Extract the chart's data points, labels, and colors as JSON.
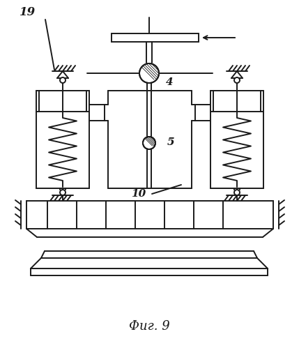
{
  "title": "Фиг. 9",
  "label_19": "19",
  "label_4": "4",
  "label_5": "5",
  "label_10": "10",
  "bg_color": "#ffffff",
  "line_color": "#1a1a1a",
  "line_width": 1.4
}
